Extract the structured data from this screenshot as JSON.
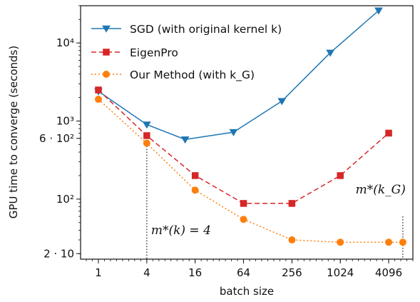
{
  "chart_data": {
    "type": "line",
    "xscale": "log2",
    "yscale": "log10",
    "xlabel": "batch size",
    "ylabel": "GPU time to converge (seconds)",
    "x_ticks": [
      1,
      4,
      16,
      64,
      256,
      1024,
      4096
    ],
    "x_tick_labels": [
      "1",
      "4",
      "16",
      "64",
      "256",
      "1024",
      "4096"
    ],
    "y_ticks": [
      20,
      100,
      600,
      1000,
      10000
    ],
    "y_tick_labels": [
      "2 · 10",
      "10²",
      "6 · 10²",
      "10³",
      "10⁴"
    ],
    "xlim": [
      0.6,
      8192
    ],
    "ylim": [
      17,
      30000
    ],
    "grid": false,
    "legend_position": "upper-left",
    "series": [
      {
        "name": "SGD (with original kernel k)",
        "color": "#1f77b4",
        "marker": "triangle-down",
        "linestyle": "solid",
        "x": [
          1,
          4,
          12,
          48,
          192,
          768,
          3072
        ],
        "y": [
          2400,
          900,
          580,
          720,
          1800,
          7500,
          26000
        ]
      },
      {
        "name": "EigenPro",
        "color": "#d62728",
        "marker": "square",
        "linestyle": "dashed",
        "x": [
          1,
          4,
          16,
          64,
          256,
          1024,
          4096
        ],
        "y": [
          2500,
          650,
          200,
          88,
          88,
          200,
          700
        ]
      },
      {
        "name": "Our Method (with k_G)",
        "color": "#ff7f0e",
        "marker": "circle",
        "linestyle": "dotted",
        "x": [
          1,
          4,
          16,
          64,
          256,
          1024,
          4096,
          6144
        ],
        "y": [
          1900,
          520,
          130,
          55,
          30,
          28,
          28,
          28
        ]
      }
    ],
    "annotations": [
      {
        "text": "m*(k) = 4",
        "x": 4
      },
      {
        "text": "m*(k_G)",
        "x": 6144
      }
    ]
  }
}
